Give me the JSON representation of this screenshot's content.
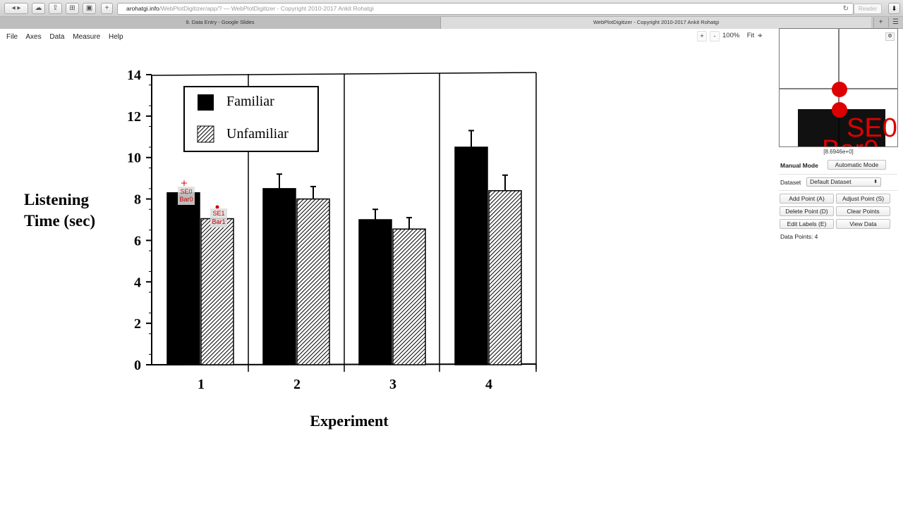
{
  "browser": {
    "url_host": "arohatgi.info",
    "url_path": "/WebPlotDigitizer/app/?",
    "url_title": " — WebPlotDigitizer - Copyright 2010-2017 Ankit Rohatgi",
    "reader_label": "Reader",
    "tabs": [
      {
        "label": "9. Data Entry - Google Slides"
      },
      {
        "label": "WebPlotDigitizer - Copyright 2010-2017 Ankit Rohatgi"
      }
    ]
  },
  "menu": [
    "File",
    "Axes",
    "Data",
    "Measure",
    "Help"
  ],
  "zoom": {
    "plus": "+",
    "minus": "-",
    "level": "100%",
    "fit": "Fit"
  },
  "sidebar": {
    "magnifier_coord": "[8.6946e+0]",
    "magnifier_text_1": "SE0",
    "magnifier_text_2": "Bar0",
    "manual_mode": "Manual Mode",
    "automatic_mode": "Automatic Mode",
    "dataset_label": "Dataset",
    "dataset_value": "Default Dataset",
    "buttons": {
      "add_point": "Add Point (A)",
      "adjust_point": "Adjust Point (S)",
      "delete_point": "Delete Point (D)",
      "clear_points": "Clear Points",
      "edit_labels": "Edit Labels (E)",
      "view_data": "View Data"
    },
    "data_points": "Data Points: 4"
  },
  "chart_data": {
    "type": "bar",
    "ylabel": "Listening Time (sec)",
    "ylabel_lines": [
      "Listening",
      "Time (sec)"
    ],
    "xlabel": "Experiment",
    "categories": [
      "1",
      "2",
      "3",
      "4"
    ],
    "yticks": [
      "0",
      "2",
      "4",
      "6",
      "8",
      "10",
      "12",
      "14"
    ],
    "ylim": [
      0,
      14
    ],
    "legend_placement": "top-left",
    "series": [
      {
        "name": "Familiar",
        "values": [
          8.3,
          8.5,
          7.0,
          10.5
        ],
        "error": [
          0.0,
          0.7,
          0.5,
          0.8
        ],
        "fill": "#000000"
      },
      {
        "name": "Unfamiliar",
        "values": [
          7.05,
          8.0,
          6.55,
          8.4
        ],
        "error": [
          0.0,
          0.6,
          0.55,
          0.75
        ],
        "fill": "hatched"
      }
    ],
    "digitized_points": [
      {
        "label_top": "SE0",
        "label_bottom": "Bar0",
        "value": 8.7
      },
      {
        "label_top": "SE1",
        "label_bottom": "Bar1",
        "value": 7.6
      }
    ]
  }
}
